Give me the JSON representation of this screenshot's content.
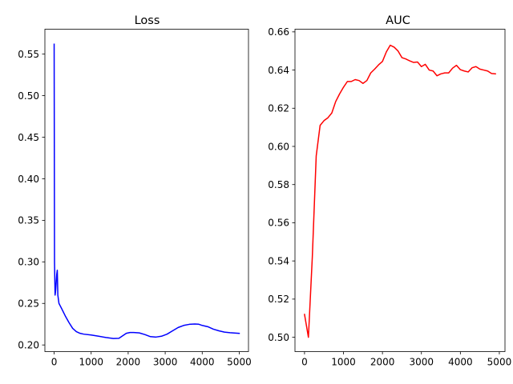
{
  "chart_data": [
    {
      "type": "line",
      "title": "Loss",
      "xlabel": "",
      "ylabel": "",
      "xlim": [
        -250,
        5250
      ],
      "ylim": [
        0.192,
        0.58
      ],
      "xticks": [
        0,
        1000,
        2000,
        3000,
        4000,
        5000
      ],
      "yticks": [
        0.2,
        0.25,
        0.3,
        0.35,
        0.4,
        0.45,
        0.5,
        0.55
      ],
      "ytick_labels": [
        "0.20",
        "0.25",
        "0.30",
        "0.35",
        "0.40",
        "0.45",
        "0.50",
        "0.55"
      ],
      "grid": false,
      "series": [
        {
          "color": "#0000ff",
          "x": [
            0,
            10,
            25,
            40,
            55,
            70,
            85,
            100,
            130,
            200,
            300,
            400,
            500,
            600,
            700,
            800,
            1000,
            1200,
            1400,
            1600,
            1750,
            1850,
            1950,
            2050,
            2150,
            2300,
            2450,
            2600,
            2750,
            2900,
            3050,
            3200,
            3350,
            3500,
            3650,
            3800,
            3900,
            4000,
            4150,
            4300,
            4450,
            4600,
            4750,
            4900,
            5000
          ],
          "y": [
            0.562,
            0.3,
            0.26,
            0.265,
            0.275,
            0.285,
            0.29,
            0.26,
            0.25,
            0.244,
            0.235,
            0.227,
            0.22,
            0.216,
            0.214,
            0.213,
            0.212,
            0.2105,
            0.209,
            0.2078,
            0.208,
            0.211,
            0.214,
            0.215,
            0.215,
            0.2145,
            0.2125,
            0.21,
            0.2095,
            0.2105,
            0.213,
            0.217,
            0.221,
            0.2235,
            0.2248,
            0.2252,
            0.225,
            0.2235,
            0.222,
            0.219,
            0.217,
            0.2155,
            0.2148,
            0.2143,
            0.214
          ]
        }
      ]
    },
    {
      "type": "line",
      "title": "AUC",
      "xlabel": "",
      "ylabel": "",
      "xlim": [
        -245,
        5145
      ],
      "ylim": [
        0.4925,
        0.6614
      ],
      "xticks": [
        0,
        1000,
        2000,
        3000,
        4000,
        5000
      ],
      "yticks": [
        0.5,
        0.52,
        0.54,
        0.56,
        0.58,
        0.6,
        0.62,
        0.64,
        0.66
      ],
      "ytick_labels": [
        "0.50",
        "0.52",
        "0.54",
        "0.56",
        "0.58",
        "0.60",
        "0.62",
        "0.64",
        "0.66"
      ],
      "grid": false,
      "series": [
        {
          "color": "#ff0000",
          "x": [
            0,
            100,
            200,
            300,
            400,
            500,
            600,
            700,
            800,
            900,
            1000,
            1100,
            1200,
            1300,
            1400,
            1500,
            1600,
            1700,
            1800,
            1900,
            2000,
            2100,
            2200,
            2300,
            2400,
            2500,
            2600,
            2700,
            2800,
            2900,
            3000,
            3100,
            3200,
            3300,
            3400,
            3500,
            3600,
            3700,
            3800,
            3900,
            4000,
            4100,
            4200,
            4300,
            4400,
            4500,
            4600,
            4700,
            4800,
            4900
          ],
          "y": [
            0.512,
            0.5,
            0.542,
            0.595,
            0.611,
            0.6135,
            0.615,
            0.6175,
            0.6235,
            0.6275,
            0.631,
            0.634,
            0.634,
            0.635,
            0.6345,
            0.633,
            0.6345,
            0.6385,
            0.6405,
            0.6427,
            0.6445,
            0.6495,
            0.653,
            0.652,
            0.65,
            0.6465,
            0.6458,
            0.6448,
            0.644,
            0.6442,
            0.6418,
            0.643,
            0.64,
            0.6395,
            0.637,
            0.638,
            0.6385,
            0.6385,
            0.641,
            0.6425,
            0.6402,
            0.6395,
            0.639,
            0.6412,
            0.6418,
            0.6405,
            0.64,
            0.6395,
            0.6382,
            0.638
          ]
        }
      ]
    }
  ]
}
